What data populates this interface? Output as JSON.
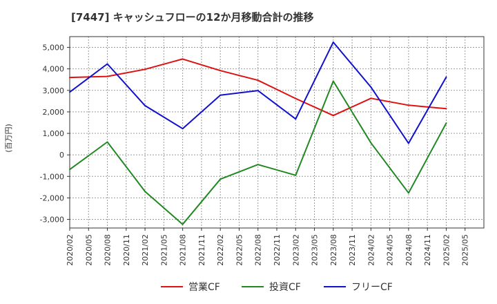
{
  "chart_data": {
    "type": "line",
    "title": "[7447]  キャッシュフローの12か月移動合計の推移",
    "ylabel": "(百万円)",
    "xlabel": "",
    "ylim": [
      -3400,
      5500
    ],
    "yticks": [
      -3000,
      -2000,
      -1000,
      0,
      1000,
      2000,
      3000,
      4000,
      5000
    ],
    "ytick_labels": [
      "-3,000",
      "-2,000",
      "-1,000",
      "0",
      "1,000",
      "2,000",
      "3,000",
      "4,000",
      "5,000"
    ],
    "x_tick_labels": [
      "2020/02",
      "2020/05",
      "2020/08",
      "2020/11",
      "2021/02",
      "2021/05",
      "2021/08",
      "2021/11",
      "2022/02",
      "2022/05",
      "2022/08",
      "2022/11",
      "2023/02",
      "2023/05",
      "2023/08",
      "2023/11",
      "2024/02",
      "2024/05",
      "2024/08",
      "2024/11",
      "2025/02",
      "2025/05"
    ],
    "grid": true,
    "legend_position": "bottom",
    "series": [
      {
        "name": "営業CF",
        "color": "#dd1111",
        "points": [
          {
            "x": "2020/02",
            "y": 3600
          },
          {
            "x": "2020/08",
            "y": 3650
          },
          {
            "x": "2021/02",
            "y": 3980
          },
          {
            "x": "2021/08",
            "y": 4460
          },
          {
            "x": "2022/02",
            "y": 3920
          },
          {
            "x": "2022/08",
            "y": 3470
          },
          {
            "x": "2023/02",
            "y": 2620
          },
          {
            "x": "2023/08",
            "y": 1830
          },
          {
            "x": "2024/02",
            "y": 2630
          },
          {
            "x": "2024/08",
            "y": 2310
          },
          {
            "x": "2025/02",
            "y": 2150
          }
        ]
      },
      {
        "name": "投資CF",
        "color": "#228822",
        "points": [
          {
            "x": "2020/02",
            "y": -680
          },
          {
            "x": "2020/08",
            "y": 600
          },
          {
            "x": "2021/02",
            "y": -1700
          },
          {
            "x": "2021/08",
            "y": -3230
          },
          {
            "x": "2022/02",
            "y": -1130
          },
          {
            "x": "2022/08",
            "y": -450
          },
          {
            "x": "2023/02",
            "y": -950
          },
          {
            "x": "2023/08",
            "y": 3430
          },
          {
            "x": "2024/02",
            "y": 560
          },
          {
            "x": "2024/08",
            "y": -1770
          },
          {
            "x": "2025/02",
            "y": 1480
          }
        ]
      },
      {
        "name": "フリーCF",
        "color": "#1111cc",
        "points": [
          {
            "x": "2020/02",
            "y": 2920
          },
          {
            "x": "2020/08",
            "y": 4230
          },
          {
            "x": "2021/02",
            "y": 2290
          },
          {
            "x": "2021/08",
            "y": 1220
          },
          {
            "x": "2022/02",
            "y": 2780
          },
          {
            "x": "2022/08",
            "y": 2990
          },
          {
            "x": "2023/02",
            "y": 1670
          },
          {
            "x": "2023/08",
            "y": 5240
          },
          {
            "x": "2024/02",
            "y": 3150
          },
          {
            "x": "2024/08",
            "y": 540
          },
          {
            "x": "2025/02",
            "y": 3620
          }
        ]
      }
    ]
  }
}
